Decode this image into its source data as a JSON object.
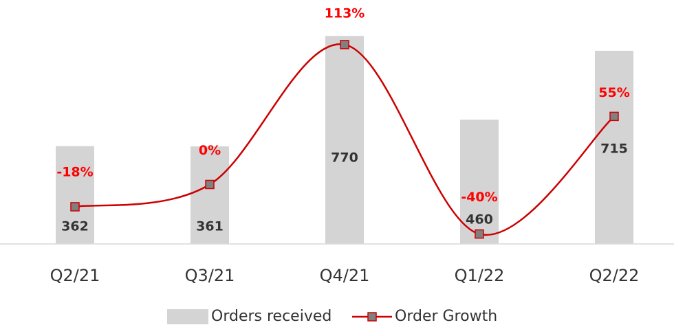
{
  "chart_data": {
    "type": "bar",
    "categories": [
      "Q2/21",
      "Q3/21",
      "Q4/21",
      "Q1/22",
      "Q2/22"
    ],
    "series": [
      {
        "name": "Orders received",
        "type": "bar",
        "color": "#d4d4d4",
        "values": [
          362,
          361,
          770,
          460,
          715
        ]
      },
      {
        "name": "Order Growth",
        "type": "line",
        "axis": "y2",
        "color": "#cc0000",
        "marker_color": "#808080",
        "values": [
          -18,
          0,
          113,
          -40,
          55
        ],
        "value_labels": [
          "-18%",
          "0%",
          "113%",
          "-40%",
          "55%"
        ]
      }
    ],
    "ylim": [
      0,
      880
    ],
    "y2lim": [
      -48,
      144
    ],
    "legend": "bottom"
  }
}
